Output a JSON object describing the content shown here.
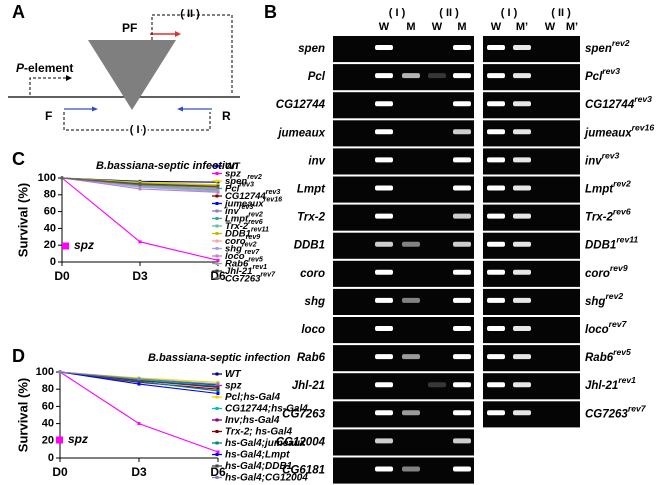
{
  "panel_a": {
    "label": "A",
    "element_name": "P",
    "element_suffix": "-element",
    "primer_pf": "PF",
    "primer_f": "F",
    "primer_r": "R",
    "product_1": "( I )",
    "product_2": "( II )"
  },
  "panel_b": {
    "label": "B",
    "left_gel": {
      "group_labels": [
        "( I )",
        "( II )"
      ],
      "lane_labels": [
        "W",
        "M",
        "W",
        "M"
      ],
      "rows": [
        "spen",
        "Pcl",
        "CG12744",
        "jumeaux",
        "inv",
        "Lmpt",
        "Trx-2",
        "DDB1",
        "coro",
        "shg",
        "loco",
        "Rab6",
        "Jhl-21",
        "CG7263",
        "CG12004",
        "CG6181"
      ]
    },
    "right_gel": {
      "group_labels": [
        "( I )",
        "( II )"
      ],
      "lane_labels": [
        "W",
        "M’",
        "W",
        "M’"
      ],
      "rows": [
        {
          "name": "spen",
          "superscript": "rev2"
        },
        {
          "name": "Pcl",
          "superscript": "rev3"
        },
        {
          "name": "CG12744",
          "superscript": "rev3"
        },
        {
          "name": "jumeaux",
          "superscript": "rev16"
        },
        {
          "name": "inv",
          "superscript": "rev3"
        },
        {
          "name": "Lmpt",
          "superscript": "rev2"
        },
        {
          "name": "Trx-2",
          "superscript": "rev6"
        },
        {
          "name": "DDB1",
          "superscript": "rev11"
        },
        {
          "name": "coro",
          "superscript": "rev9"
        },
        {
          "name": "shg",
          "superscript": "rev2"
        },
        {
          "name": "loco",
          "superscript": "rev7"
        },
        {
          "name": "Rab6",
          "superscript": "rev5"
        },
        {
          "name": "Jhl-21",
          "superscript": "rev1"
        },
        {
          "name": "CG7263",
          "superscript": "rev7"
        }
      ]
    }
  },
  "chart_data": [
    {
      "type": "line",
      "panel_label": "C",
      "title": "B.bassiana-septic infection",
      "y_label": "Survival (%)",
      "annotation": "spz",
      "categories": [
        "D0",
        "D3",
        "D6"
      ],
      "ylim": [
        0,
        100
      ],
      "yticks": [
        0,
        20,
        40,
        60,
        80,
        100
      ],
      "series": [
        {
          "name": "WT",
          "color": "#000080",
          "values": [
            100,
            96,
            95
          ]
        },
        {
          "name": "spz",
          "color": "#ff00ff",
          "values": [
            100,
            24,
            2
          ]
        },
        {
          "name": "spen",
          "superscript": "rev2",
          "color": "#e6d800",
          "values": [
            100,
            95,
            92
          ]
        },
        {
          "name": "Pcl",
          "superscript": "rev3",
          "color": "#00bfbf",
          "values": [
            100,
            94,
            90
          ]
        },
        {
          "name": "CG12744",
          "superscript": "rev3",
          "color": "#800000",
          "values": [
            100,
            93,
            88
          ]
        },
        {
          "name": "jumeaux",
          "superscript": "rev16",
          "color": "#0000ff",
          "values": [
            100,
            92,
            87
          ]
        },
        {
          "name": "inv",
          "superscript": "rev3",
          "color": "#8080c0",
          "values": [
            100,
            91,
            86
          ]
        },
        {
          "name": "Lmpt",
          "superscript": "rev2",
          "color": "#40a0a0",
          "values": [
            100,
            93,
            89
          ]
        },
        {
          "name": "Trx-2",
          "superscript": "rev6",
          "color": "#60c0a0",
          "values": [
            100,
            90,
            85
          ]
        },
        {
          "name": "DDB1",
          "superscript": "rev11",
          "color": "#c0c000",
          "values": [
            100,
            94,
            91
          ]
        },
        {
          "name": "coro",
          "superscript": "rev9",
          "color": "#ffa0a0",
          "values": [
            100,
            92,
            88
          ]
        },
        {
          "name": "shg",
          "superscript": "rev2",
          "color": "#a0a0ff",
          "values": [
            100,
            89,
            84
          ]
        },
        {
          "name": "loco",
          "superscript": "rev7",
          "color": "#c080c0",
          "values": [
            100,
            87,
            83
          ]
        },
        {
          "name": "Rab6",
          "superscript": "rev5",
          "color": "#a0a0a0",
          "values": [
            100,
            91,
            87
          ]
        },
        {
          "name": "Jhl-21",
          "superscript": "rev1",
          "color": "#404040",
          "values": [
            100,
            93,
            90
          ]
        },
        {
          "name": "CG7263",
          "superscript": "rev7",
          "color": "#606060",
          "values": [
            100,
            92,
            89
          ]
        }
      ]
    },
    {
      "type": "line",
      "panel_label": "D",
      "title": "B.bassiana-septic infection",
      "y_label": "Survival (%)",
      "annotation": "spz",
      "categories": [
        "D0",
        "D3",
        "D6"
      ],
      "ylim": [
        0,
        100
      ],
      "yticks": [
        0,
        20,
        40,
        60,
        80,
        100
      ],
      "series": [
        {
          "name": "WT",
          "color": "#000080",
          "values": [
            100,
            92,
            85
          ]
        },
        {
          "name": "spz",
          "color": "#ff00ff",
          "values": [
            100,
            40,
            7
          ]
        },
        {
          "name": "Pcl;hs-Gal4",
          "color": "#e6d800",
          "values": [
            100,
            93,
            88
          ]
        },
        {
          "name": "CG12744;hs-Gal4",
          "color": "#00bfbf",
          "values": [
            100,
            91,
            84
          ]
        },
        {
          "name": "Inv;hs-Gal4",
          "color": "#800080",
          "values": [
            100,
            90,
            82
          ]
        },
        {
          "name": "Trx-2; hs-Gal4",
          "color": "#800000",
          "values": [
            100,
            88,
            80
          ]
        },
        {
          "name": "hs-Gal4;jumeaux",
          "color": "#008080",
          "values": [
            100,
            89,
            78
          ]
        },
        {
          "name": "hs-Gal4;Lmpt",
          "color": "#0000ff",
          "values": [
            100,
            86,
            75
          ]
        },
        {
          "name": "hs-Gal4;DDB1",
          "color": "#404040",
          "values": [
            100,
            90,
            83
          ]
        },
        {
          "name": "hs-Gal4;CG12004",
          "color": "#8080c0",
          "values": [
            100,
            92,
            86
          ]
        }
      ]
    }
  ]
}
